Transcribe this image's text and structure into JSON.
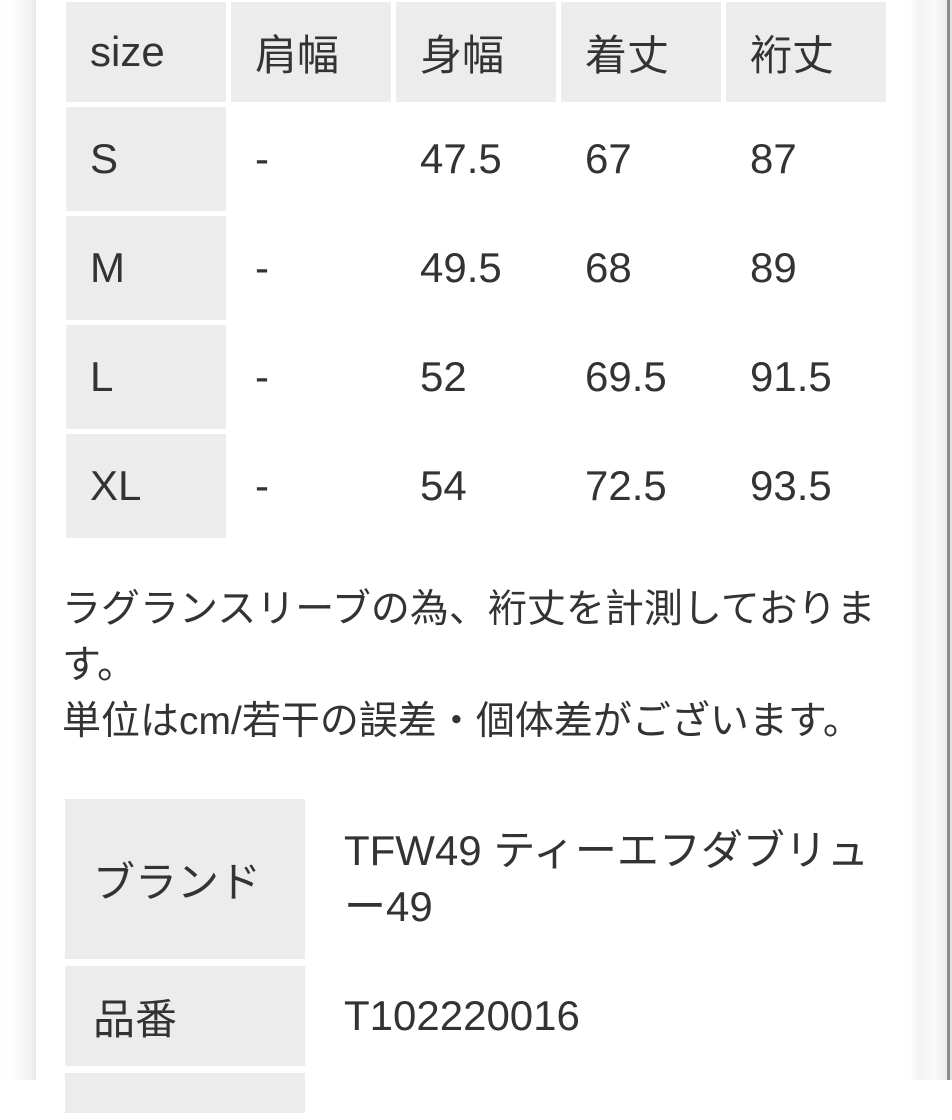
{
  "colors": {
    "page_background": "#ffffff",
    "cell_background": "#ececec",
    "text": "#333333",
    "right_edge_border": "#8c8c8c"
  },
  "size_chart": {
    "headers": [
      "size",
      "肩幅",
      "身幅",
      "着丈",
      "裄丈"
    ],
    "rows": [
      [
        "S",
        "-",
        "47.5",
        "67",
        "87"
      ],
      [
        "M",
        "-",
        "49.5",
        "68",
        "89"
      ],
      [
        "L",
        "-",
        "52",
        "69.5",
        "91.5"
      ],
      [
        "XL",
        "-",
        "54",
        "72.5",
        "93.5"
      ]
    ],
    "unit": "cm"
  },
  "notes": {
    "sentences": [
      "ラグランスリーブの為、裄丈を計測しております。",
      "単位はcm/若干の誤差・個体差がございます。"
    ],
    "lines": [
      "ラグランスリーブの為、裄丈を計測しておりま",
      "す。",
      "単位はcm/若干の誤差・個体差がございます。"
    ]
  },
  "product_info": {
    "rows": [
      {
        "label": "ブランド",
        "value": "TFW49 ティーエフダブリュー49",
        "value_lines": [
          "TFW49 ティーエフダブリュ",
          "ー49"
        ]
      },
      {
        "label": "品番",
        "value": "T102220016",
        "value_lines": [
          "T102220016"
        ]
      }
    ],
    "next_row_partially_visible": true
  }
}
